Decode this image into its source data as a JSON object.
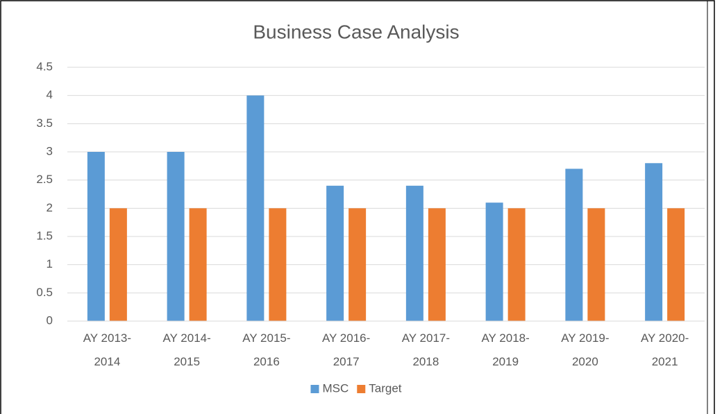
{
  "chart_data": {
    "type": "bar",
    "title": "Business Case Analysis",
    "categories": [
      "AY 2013-2014",
      "AY 2014-2015",
      "AY 2015-2016",
      "AY 2016-2017",
      "AY 2017-2018",
      "AY 2018-2019",
      "AY 2019-2020",
      "AY 2020-2021"
    ],
    "series": [
      {
        "name": "MSC",
        "color": "#5b9bd5",
        "values": [
          3,
          3,
          4,
          2.4,
          2.4,
          2.1,
          2.7,
          2.8
        ]
      },
      {
        "name": "Target",
        "color": "#ed7d31",
        "values": [
          2,
          2,
          2,
          2,
          2,
          2,
          2,
          2
        ]
      }
    ],
    "ylim": [
      0,
      4.5
    ],
    "yticks": [
      0,
      0.5,
      1,
      1.5,
      2,
      2.5,
      3,
      3.5,
      4,
      4.5
    ],
    "grid": true,
    "legend": "bottom"
  }
}
